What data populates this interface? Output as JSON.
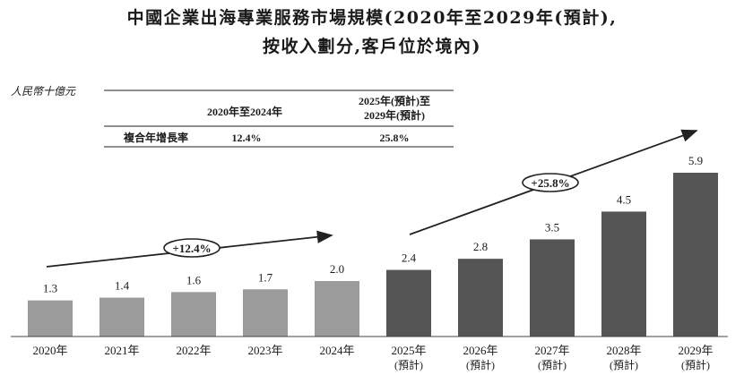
{
  "title_line1": "中國企業出海專業服務市場規模(2020年至2029年(預計),",
  "title_line2": "按收入劃分,客戶位於境內)",
  "unit_label": "人民幣十億元",
  "cagr_table": {
    "col1_header": "2020年至2024年",
    "col2_header_line1": "2025年(預計)至",
    "col2_header_line2": "2029年(預計)",
    "row_label": "複合年增長率",
    "col1_value": "12.4%",
    "col2_value": "25.8%"
  },
  "annotations": {
    "hist_cagr": "+12.4%",
    "forecast_cagr": "+25.8%"
  },
  "colors": {
    "historical": "#9b9b9b",
    "forecast": "#555555"
  },
  "chart_data": {
    "type": "bar",
    "categories": [
      "2020年",
      "2021年",
      "2022年",
      "2023年",
      "2024年",
      "2025年",
      "2026年",
      "2027年",
      "2028年",
      "2029年"
    ],
    "category_sublabels": [
      "",
      "",
      "",
      "",
      "",
      "(預計)",
      "(預計)",
      "(預計)",
      "(預計)",
      "(預計)"
    ],
    "values": [
      1.3,
      1.4,
      1.6,
      1.7,
      2.0,
      2.4,
      2.8,
      3.5,
      4.5,
      5.9
    ],
    "data_labels": [
      "1.3",
      "1.4",
      "1.6",
      "1.7",
      "2.0",
      "2.4",
      "2.8",
      "3.5",
      "4.5",
      "5.9"
    ],
    "forecast_start_index": 5,
    "ylabel": "人民幣十億元",
    "ylim": [
      0,
      5.9
    ],
    "grid": false
  }
}
